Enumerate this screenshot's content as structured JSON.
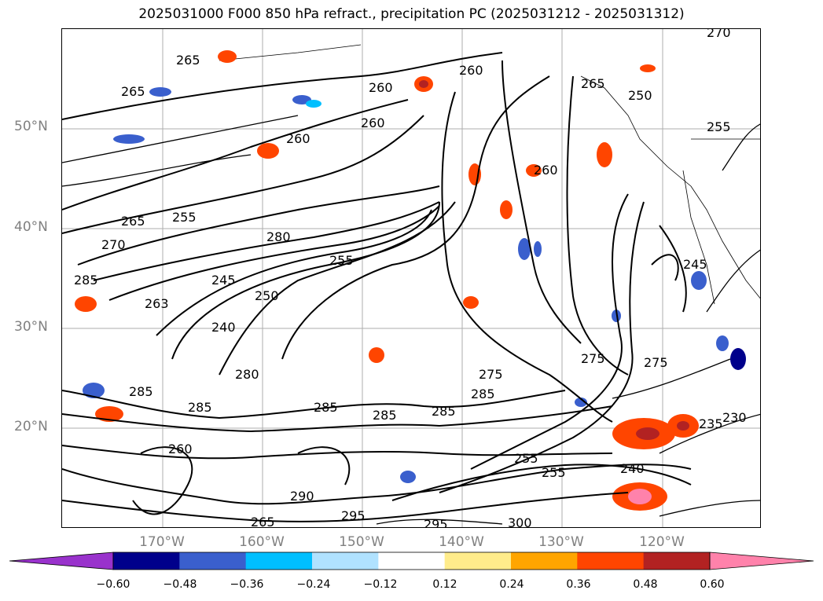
{
  "title": "2025031000 F000 850 hPa refract., precipitation PC (2025031212 - 2025031312)",
  "lat_labels": [
    "50°N",
    "40°N",
    "30°N",
    "20°N"
  ],
  "lon_labels": [
    "170°W",
    "160°W",
    "150°W",
    "140°W",
    "130°W",
    "120°W"
  ],
  "contour_labels": [
    "265",
    "265",
    "260",
    "260",
    "260",
    "255",
    "255",
    "250",
    "265",
    "265",
    "270",
    "285",
    "280",
    "260",
    "255",
    "245",
    "250",
    "263",
    "240",
    "280",
    "275",
    "285",
    "285",
    "285",
    "285",
    "285",
    "290",
    "295",
    "300",
    "295",
    "275",
    "285",
    "275",
    "255",
    "235",
    "230",
    "240",
    "255",
    "260",
    "265",
    "245",
    "270",
    "260"
  ],
  "colorbar": {
    "ticks": [
      "−0.60",
      "−0.48",
      "−0.36",
      "−0.24",
      "−0.12",
      "0.12",
      "0.24",
      "0.36",
      "0.48",
      "0.60"
    ],
    "colors": [
      "#9932cc",
      "#00008b",
      "#3a5fcd",
      "#00bfff",
      "#b0e2ff",
      "#ffffff",
      "#ffec8b",
      "#ffa500",
      "#ff4500",
      "#b22222",
      "#ff82ab"
    ]
  }
}
